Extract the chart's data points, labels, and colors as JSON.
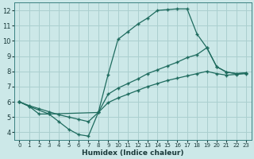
{
  "xlabel": "Humidex (Indice chaleur)",
  "bg_color": "#cce8e8",
  "grid_color": "#aacfcf",
  "line_color": "#1e6b5e",
  "xlim": [
    -0.5,
    23.5
  ],
  "ylim": [
    3.5,
    12.5
  ],
  "xticks": [
    0,
    1,
    2,
    3,
    4,
    5,
    6,
    7,
    8,
    9,
    10,
    11,
    12,
    13,
    14,
    15,
    16,
    17,
    18,
    19,
    20,
    21,
    22,
    23
  ],
  "yticks": [
    4,
    5,
    6,
    7,
    8,
    9,
    10,
    11,
    12
  ],
  "line1_x": [
    0,
    1,
    2,
    3,
    4,
    5,
    6,
    7,
    8,
    9,
    10,
    11,
    12,
    13,
    14,
    15,
    16,
    17,
    18,
    19,
    20,
    21,
    22,
    23
  ],
  "line1_y": [
    6.0,
    5.7,
    5.2,
    5.2,
    4.7,
    4.2,
    3.85,
    3.75,
    5.3,
    7.8,
    10.1,
    10.6,
    11.1,
    11.5,
    12.0,
    12.05,
    12.1,
    12.1,
    10.45,
    9.55,
    8.3,
    7.95,
    7.85,
    7.9
  ],
  "line2_x": [
    0,
    1,
    3,
    8,
    9,
    10,
    11,
    12,
    13,
    14,
    15,
    16,
    17,
    18,
    19,
    20,
    21,
    22,
    23
  ],
  "line2_y": [
    6.0,
    5.7,
    5.2,
    5.3,
    6.5,
    6.9,
    7.2,
    7.5,
    7.85,
    8.1,
    8.35,
    8.6,
    8.9,
    9.1,
    9.55,
    8.3,
    7.95,
    7.85,
    7.9
  ],
  "line3_x": [
    0,
    1,
    2,
    3,
    4,
    5,
    6,
    7,
    8,
    9,
    10,
    11,
    12,
    13,
    14,
    15,
    16,
    17,
    18,
    19,
    20,
    21,
    22,
    23
  ],
  "line3_y": [
    6.0,
    5.75,
    5.55,
    5.35,
    5.15,
    5.0,
    4.85,
    4.7,
    5.3,
    5.95,
    6.25,
    6.5,
    6.75,
    7.0,
    7.2,
    7.4,
    7.55,
    7.7,
    7.85,
    8.0,
    7.85,
    7.75,
    7.8,
    7.85
  ],
  "markersize": 2.5
}
